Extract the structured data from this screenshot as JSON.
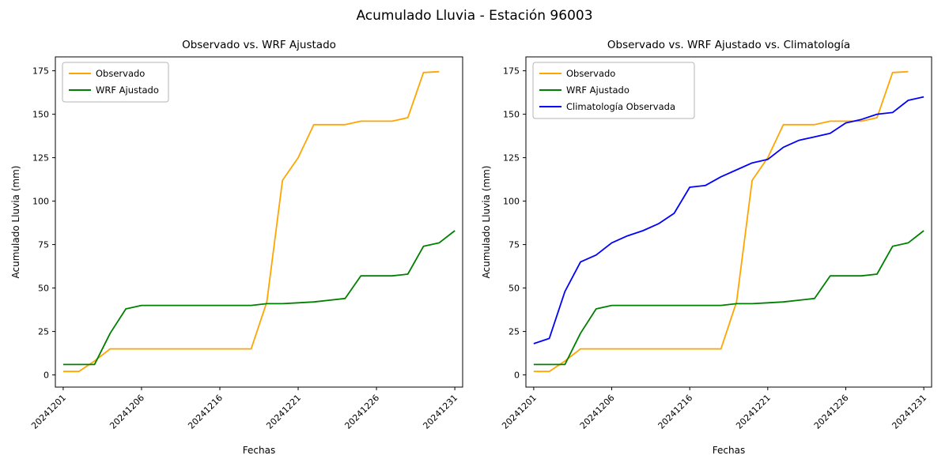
{
  "figure": {
    "title": "Acumulado Lluvia - Estación 96003"
  },
  "chart_data": [
    {
      "type": "line",
      "title": "Observado vs. WRF Ajustado",
      "xlabel": "Fechas",
      "ylabel": "Acumulado Lluvia (mm)",
      "ylim": [
        0,
        175
      ],
      "yticks": [
        0,
        25,
        50,
        75,
        100,
        125,
        150,
        175
      ],
      "grid": false,
      "legend_position": "upper-left",
      "x": [
        "20241201",
        "20241202",
        "20241203",
        "20241204",
        "20241205",
        "20241206",
        "20241212",
        "20241213",
        "20241214",
        "20241215",
        "20241216",
        "20241217",
        "20241218",
        "20241219",
        "20241220",
        "20241221",
        "20241222",
        "20241223",
        "20241224",
        "20241225",
        "20241226",
        "20241227",
        "20241228",
        "20241229",
        "20241230",
        "20241231"
      ],
      "xtick_indices": [
        0,
        5,
        10,
        15,
        20,
        25
      ],
      "xtick_labels": [
        "20241201",
        "20241206",
        "20241216",
        "20241221",
        "20241226",
        "20241231"
      ],
      "series": [
        {
          "name": "Observado",
          "color": "#FFA500",
          "values": [
            2,
            2,
            8,
            15,
            15,
            15,
            15,
            15,
            15,
            15,
            15,
            15,
            15,
            42,
            112,
            125,
            144,
            144,
            144,
            146,
            146,
            146,
            148,
            174,
            174.5,
            null
          ]
        },
        {
          "name": "WRF Ajustado",
          "color": "#008000",
          "values": [
            6,
            6,
            6,
            24,
            38,
            40,
            40,
            40,
            40,
            40,
            40,
            40,
            40,
            41,
            41,
            41.5,
            42,
            43,
            44,
            57,
            57,
            57,
            58,
            74,
            76,
            83
          ]
        }
      ]
    },
    {
      "type": "line",
      "title": "Observado vs. WRF Ajustado vs. Climatología",
      "xlabel": "Fechas",
      "ylabel": "Acumulado Lluvia (mm)",
      "ylim": [
        0,
        175
      ],
      "yticks": [
        0,
        25,
        50,
        75,
        100,
        125,
        150,
        175
      ],
      "grid": false,
      "legend_position": "upper-left",
      "x": [
        "20241201",
        "20241202",
        "20241203",
        "20241204",
        "20241205",
        "20241206",
        "20241212",
        "20241213",
        "20241214",
        "20241215",
        "20241216",
        "20241217",
        "20241218",
        "20241219",
        "20241220",
        "20241221",
        "20241222",
        "20241223",
        "20241224",
        "20241225",
        "20241226",
        "20241227",
        "20241228",
        "20241229",
        "20241230",
        "20241231"
      ],
      "xtick_indices": [
        0,
        5,
        10,
        15,
        20,
        25
      ],
      "xtick_labels": [
        "20241201",
        "20241206",
        "20241216",
        "20241221",
        "20241226",
        "20241231"
      ],
      "series": [
        {
          "name": "Observado",
          "color": "#FFA500",
          "values": [
            2,
            2,
            8,
            15,
            15,
            15,
            15,
            15,
            15,
            15,
            15,
            15,
            15,
            42,
            112,
            125,
            144,
            144,
            144,
            146,
            146,
            146,
            148,
            174,
            174.5,
            null
          ]
        },
        {
          "name": "WRF Ajustado",
          "color": "#008000",
          "values": [
            6,
            6,
            6,
            24,
            38,
            40,
            40,
            40,
            40,
            40,
            40,
            40,
            40,
            41,
            41,
            41.5,
            42,
            43,
            44,
            57,
            57,
            57,
            58,
            74,
            76,
            83
          ]
        },
        {
          "name": "Climatología Observada",
          "color": "#0000FF",
          "values": [
            18,
            21,
            48,
            65,
            69,
            76,
            80,
            83,
            87,
            93,
            108,
            109,
            114,
            118,
            122,
            124,
            131,
            135,
            137,
            139,
            145,
            147,
            150,
            151,
            158,
            160
          ]
        }
      ]
    }
  ]
}
